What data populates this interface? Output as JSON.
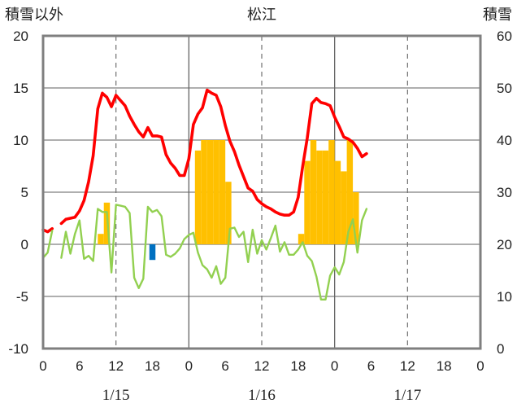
{
  "chart_data": {
    "type": "combo",
    "title": "松江",
    "y_left_label": "積雪以外",
    "y_right_label": "積雪",
    "y_left_range": [
      -10,
      20
    ],
    "y_left_ticks": [
      "20",
      "15",
      "10",
      "5",
      "0",
      "-5",
      "-10"
    ],
    "y_right_range": [
      0,
      60
    ],
    "y_right_ticks": [
      "60",
      "50",
      "40",
      "30",
      "20",
      "10",
      "0"
    ],
    "x_range_hours": [
      0,
      72
    ],
    "x_tick_labels": [
      "0",
      "6",
      "12",
      "18",
      "0",
      "6",
      "12",
      "18",
      "0",
      "6",
      "12",
      "18",
      "0"
    ],
    "date_labels": [
      "1/15",
      "1/16",
      "1/17"
    ],
    "colors": {
      "temperature": "#ff0000",
      "dew_point": "#92d050",
      "precipitation": "#ffc000",
      "precip_negative": "#0070c0",
      "snow_depth": "#7030a0",
      "grid": "#7f7f7f",
      "frame": "#7f7f7f"
    },
    "series": [
      {
        "name": "temperature",
        "type": "line",
        "axis": "left",
        "segments": [
          [
            [
              0,
              1.4
            ],
            [
              0.75,
              1.2
            ],
            [
              1.5,
              1.5
            ]
          ],
          [
            [
              3,
              2
            ],
            [
              3.75,
              2.4
            ],
            [
              5.25,
              2.6
            ],
            [
              6,
              3.2
            ],
            [
              6.75,
              4.2
            ],
            [
              7.5,
              6
            ],
            [
              8.25,
              8.5
            ],
            [
              9,
              13
            ],
            [
              9.75,
              14.5
            ],
            [
              10.5,
              14.1
            ],
            [
              11.25,
              13.2
            ],
            [
              12,
              14.3
            ],
            [
              12.75,
              13.8
            ],
            [
              13.5,
              13.3
            ],
            [
              14.25,
              12.3
            ],
            [
              15,
              11.5
            ],
            [
              15.75,
              10.8
            ],
            [
              16.5,
              10.3
            ],
            [
              17.25,
              11.2
            ],
            [
              18,
              10.4
            ],
            [
              18.75,
              10.4
            ],
            [
              19.5,
              10.3
            ],
            [
              20.25,
              8.6
            ],
            [
              21,
              7.8
            ],
            [
              21.75,
              7.3
            ],
            [
              22.5,
              6.6
            ],
            [
              23.25,
              6.6
            ],
            [
              24,
              8.2
            ],
            [
              24.75,
              11.5
            ],
            [
              25.5,
              12.5
            ],
            [
              26.25,
              13.1
            ],
            [
              27,
              14.8
            ],
            [
              27.75,
              14.5
            ],
            [
              28.5,
              14.3
            ],
            [
              29.25,
              13.2
            ],
            [
              30,
              11.4
            ],
            [
              30.75,
              9.9
            ],
            [
              31.5,
              8.9
            ],
            [
              32.25,
              7.6
            ],
            [
              33,
              6.5
            ],
            [
              33.75,
              5.4
            ],
            [
              34.5,
              5.1
            ],
            [
              35.25,
              4.3
            ],
            [
              36,
              3.9
            ],
            [
              36.75,
              3.6
            ],
            [
              37.5,
              3.4
            ],
            [
              38.25,
              3.1
            ],
            [
              39,
              2.9
            ],
            [
              39.75,
              2.8
            ],
            [
              40.5,
              2.8
            ],
            [
              41.25,
              3.1
            ],
            [
              42,
              4.5
            ],
            [
              42.75,
              7.5
            ],
            [
              43.5,
              10.2
            ],
            [
              44.25,
              13.5
            ],
            [
              45,
              14
            ],
            [
              45.75,
              13.6
            ],
            [
              46.5,
              13.5
            ],
            [
              47.25,
              13.3
            ],
            [
              48,
              12.2
            ],
            [
              48.75,
              11.3
            ],
            [
              49.5,
              10.3
            ],
            [
              50.25,
              10.1
            ],
            [
              51,
              9.8
            ],
            [
              51.75,
              9.2
            ],
            [
              52.5,
              8.4
            ],
            [
              53.25,
              8.7
            ]
          ]
        ]
      },
      {
        "name": "dew_point",
        "type": "line",
        "axis": "left",
        "segments": [
          [
            [
              0,
              -1.3
            ],
            [
              0.75,
              -0.8
            ],
            [
              1.5,
              1.3
            ]
          ],
          [
            [
              3,
              -1.3
            ],
            [
              3.75,
              1.2
            ],
            [
              4.5,
              -0.9
            ],
            [
              5.25,
              1
            ],
            [
              6,
              2.3
            ],
            [
              6.75,
              -1.4
            ],
            [
              7.5,
              -1.1
            ],
            [
              8.25,
              -1.6
            ],
            [
              9,
              3.4
            ],
            [
              9.75,
              3.1
            ],
            [
              10.5,
              3.1
            ],
            [
              11.25,
              -2.7
            ],
            [
              12,
              3.8
            ],
            [
              12.75,
              3.7
            ],
            [
              13.5,
              3.6
            ],
            [
              14.25,
              3
            ],
            [
              15,
              -3.2
            ],
            [
              15.75,
              -4.2
            ],
            [
              16.5,
              -3.3
            ],
            [
              17.25,
              3.6
            ],
            [
              18,
              3.1
            ],
            [
              18.75,
              3.3
            ],
            [
              19.5,
              2.7
            ],
            [
              20.25,
              -1
            ],
            [
              21,
              -1.2
            ],
            [
              21.75,
              -0.9
            ],
            [
              22.5,
              -0.4
            ],
            [
              23.25,
              0.5
            ],
            [
              24,
              0.9
            ],
            [
              24.75,
              1.1
            ],
            [
              25.5,
              -0.8
            ],
            [
              26.25,
              -2
            ],
            [
              27,
              -2.4
            ],
            [
              27.75,
              -3.2
            ],
            [
              28.5,
              -2.1
            ],
            [
              29.25,
              -3.8
            ],
            [
              30,
              -3.2
            ],
            [
              30.75,
              1.5
            ],
            [
              31.5,
              1.6
            ],
            [
              32.25,
              0.7
            ],
            [
              33,
              1.2
            ],
            [
              33.75,
              -1.7
            ],
            [
              34.5,
              1.4
            ],
            [
              35.25,
              -0.9
            ],
            [
              36,
              0.4
            ],
            [
              36.75,
              -0.5
            ],
            [
              37.5,
              0.6
            ],
            [
              38.25,
              1.8
            ],
            [
              39,
              -0.7
            ],
            [
              39.75,
              0.2
            ],
            [
              40.5,
              -1
            ],
            [
              41.25,
              -1
            ],
            [
              42,
              -0.5
            ],
            [
              42.75,
              0.2
            ],
            [
              43.5,
              -1.1
            ],
            [
              44.25,
              -1.6
            ],
            [
              45,
              -3.1
            ],
            [
              45.75,
              -5.3
            ],
            [
              46.5,
              -5.3
            ],
            [
              47.25,
              -3
            ],
            [
              48,
              -2.2
            ],
            [
              48.75,
              -2.9
            ],
            [
              49.5,
              -1.7
            ],
            [
              50.25,
              1.2
            ],
            [
              51,
              2.4
            ],
            [
              51.75,
              -0.8
            ],
            [
              52.5,
              2.3
            ],
            [
              53.25,
              3.4
            ]
          ]
        ]
      },
      {
        "name": "precipitation",
        "type": "bar",
        "axis": "left",
        "bar_width_hours": 1,
        "points": [
          [
            9.5,
            1
          ],
          [
            10.5,
            4
          ],
          [
            25.5,
            9
          ],
          [
            26.5,
            10
          ],
          [
            27.5,
            10
          ],
          [
            28.5,
            10
          ],
          [
            29.5,
            10
          ],
          [
            30.5,
            6
          ],
          [
            42.5,
            1
          ],
          [
            43.5,
            8
          ],
          [
            44.5,
            10
          ],
          [
            45.5,
            9
          ],
          [
            46.5,
            9
          ],
          [
            47.5,
            10
          ],
          [
            48.5,
            8
          ],
          [
            49.5,
            7
          ],
          [
            50.5,
            10
          ],
          [
            51.5,
            5
          ]
        ]
      },
      {
        "name": "precip_negative",
        "type": "bar",
        "axis": "left",
        "bar_width_hours": 1,
        "points": [
          [
            18,
            -1.5
          ]
        ]
      },
      {
        "name": "snow_depth",
        "type": "line",
        "axis": "right",
        "segments": [
          [
            [
              0,
              0
            ],
            [
              72,
              0
            ]
          ]
        ]
      }
    ]
  }
}
